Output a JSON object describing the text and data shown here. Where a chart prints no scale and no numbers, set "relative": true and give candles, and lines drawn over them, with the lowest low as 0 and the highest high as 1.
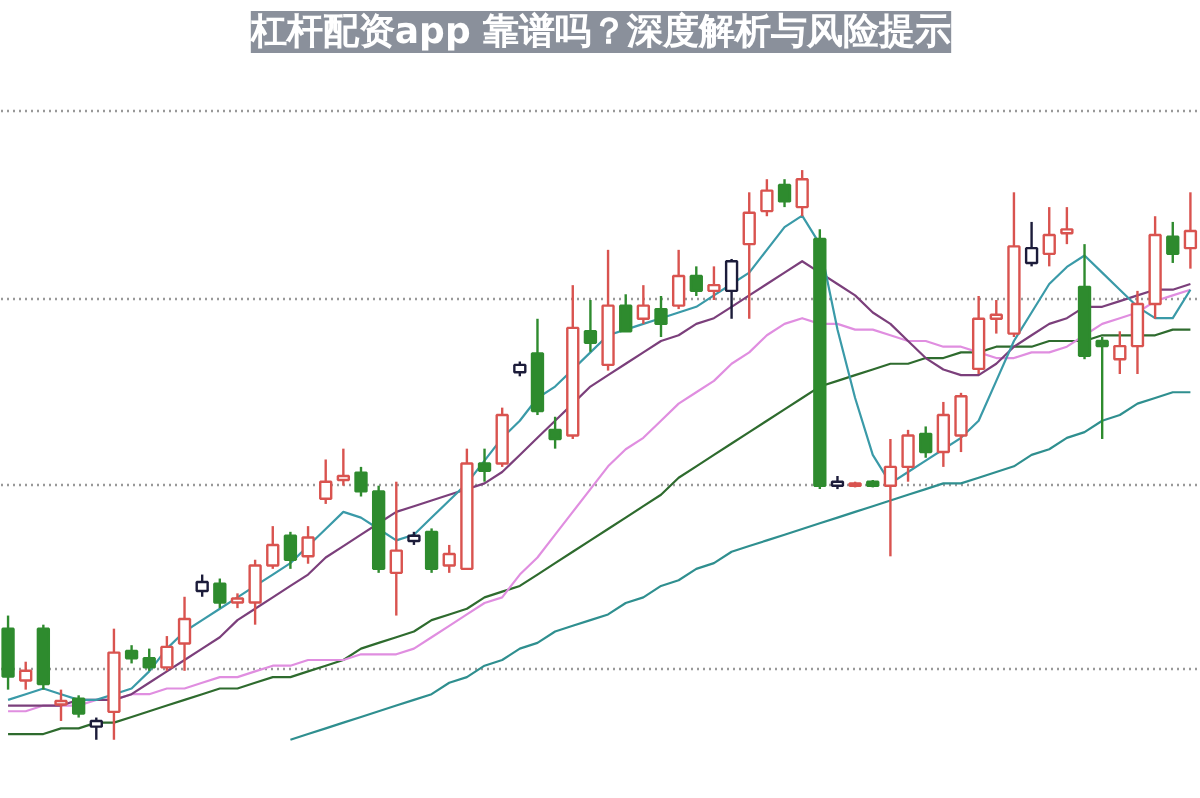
{
  "chart_data": {
    "type": "candlestick",
    "relative": true,
    "grid": true,
    "title": "杠杆配资app 靠谱吗？深度解析与风险提示",
    "categories": [
      null,
      null,
      null,
      null,
      null,
      null,
      null,
      null,
      null,
      null,
      null,
      null,
      null,
      null,
      null,
      null,
      null,
      null,
      null,
      null,
      null,
      null,
      null,
      null,
      null,
      null,
      null,
      null,
      null,
      null,
      null,
      null,
      null,
      null,
      null,
      null,
      null,
      null,
      null,
      null,
      null,
      null,
      null,
      null,
      null,
      null,
      null,
      null,
      null,
      null,
      null,
      null,
      null,
      null,
      null,
      null,
      null,
      null,
      null,
      null,
      null,
      null,
      null,
      null,
      null,
      null,
      null,
      null
    ],
    "ohlc": [
      [
        0.195,
        0.218,
        0.088,
        0.111
      ],
      [
        0.104,
        0.137,
        0.088,
        0.121
      ],
      [
        0.195,
        0.202,
        0.088,
        0.098
      ],
      [
        0.062,
        0.088,
        0.033,
        0.068
      ],
      [
        0.072,
        0.078,
        0.039,
        0.046
      ],
      [
        0.023,
        0.039,
        0.0,
        0.033
      ],
      [
        0.049,
        0.195,
        0.0,
        0.153
      ],
      [
        0.156,
        0.166,
        0.134,
        0.143
      ],
      [
        0.143,
        0.16,
        0.121,
        0.127
      ],
      [
        0.127,
        0.182,
        0.121,
        0.163
      ],
      [
        0.169,
        0.251,
        0.121,
        0.212
      ],
      [
        0.261,
        0.29,
        0.251,
        0.277
      ],
      [
        0.274,
        0.283,
        0.231,
        0.241
      ],
      [
        0.241,
        0.257,
        0.231,
        0.248
      ],
      [
        0.241,
        0.316,
        0.202,
        0.306
      ],
      [
        0.306,
        0.375,
        0.3,
        0.342
      ],
      [
        0.358,
        0.365,
        0.3,
        0.316
      ],
      [
        0.322,
        0.375,
        0.309,
        0.355
      ],
      [
        0.423,
        0.492,
        0.414,
        0.453
      ],
      [
        0.456,
        0.511,
        0.446,
        0.463
      ],
      [
        0.469,
        0.479,
        0.427,
        0.436
      ],
      [
        0.436,
        0.446,
        0.293,
        0.3
      ],
      [
        0.293,
        0.453,
        0.218,
        0.332
      ],
      [
        0.349,
        0.365,
        0.342,
        0.358
      ],
      [
        0.365,
        0.371,
        0.293,
        0.3
      ],
      [
        0.306,
        0.342,
        0.293,
        0.326
      ],
      [
        0.3,
        0.511,
        0.3,
        0.485
      ],
      [
        0.485,
        0.511,
        0.453,
        0.472
      ],
      [
        0.485,
        0.583,
        0.479,
        0.57
      ],
      [
        0.645,
        0.664,
        0.638,
        0.658
      ],
      [
        0.678,
        0.739,
        0.57,
        0.577
      ],
      [
        0.544,
        0.567,
        0.511,
        0.528
      ],
      [
        0.534,
        0.798,
        0.528,
        0.723
      ],
      [
        0.717,
        0.772,
        0.681,
        0.697
      ],
      [
        0.658,
        0.86,
        0.648,
        0.762
      ],
      [
        0.762,
        0.782,
        0.717,
        0.717
      ],
      [
        0.739,
        0.798,
        0.73,
        0.762
      ],
      [
        0.756,
        0.779,
        0.707,
        0.73
      ],
      [
        0.762,
        0.86,
        0.756,
        0.814
      ],
      [
        0.814,
        0.831,
        0.779,
        0.788
      ],
      [
        0.788,
        0.831,
        0.772,
        0.798
      ],
      [
        0.788,
        0.844,
        0.739,
        0.84
      ],
      [
        0.87,
        0.961,
        0.739,
        0.925
      ],
      [
        0.928,
        0.984,
        0.919,
        0.964
      ],
      [
        0.974,
        0.984,
        0.935,
        0.945
      ],
      [
        0.935,
        1.0,
        0.919,
        0.984
      ],
      [
        0.879,
        0.896,
        0.44,
        0.446
      ],
      [
        0.446,
        0.463,
        0.44,
        0.453
      ],
      [
        0.446,
        0.453,
        0.443,
        0.45
      ],
      [
        0.453,
        0.456,
        0.443,
        0.446
      ],
      [
        0.446,
        0.528,
        0.322,
        0.479
      ],
      [
        0.479,
        0.544,
        0.453,
        0.534
      ],
      [
        0.537,
        0.55,
        0.495,
        0.505
      ],
      [
        0.505,
        0.593,
        0.479,
        0.57
      ],
      [
        0.534,
        0.609,
        0.505,
        0.603
      ],
      [
        0.651,
        0.779,
        0.642,
        0.739
      ],
      [
        0.739,
        0.772,
        0.713,
        0.746
      ],
      [
        0.713,
        0.961,
        0.707,
        0.866
      ],
      [
        0.837,
        0.909,
        0.831,
        0.863
      ],
      [
        0.853,
        0.935,
        0.831,
        0.886
      ],
      [
        0.889,
        0.935,
        0.87,
        0.896
      ],
      [
        0.795,
        0.87,
        0.668,
        0.674
      ],
      [
        0.7,
        0.707,
        0.528,
        0.691
      ],
      [
        0.668,
        0.717,
        0.642,
        0.691
      ],
      [
        0.691,
        0.788,
        0.642,
        0.765
      ],
      [
        0.765,
        0.919,
        0.739,
        0.886
      ],
      [
        0.883,
        0.909,
        0.837,
        0.853
      ],
      [
        0.863,
        0.961,
        0.827,
        0.893
      ]
    ],
    "colors": [
      "#2e8b2e",
      "#d9534f",
      "#2e8b2e",
      "#d9534f",
      "#2e8b2e",
      "#1c1c3a",
      "#d9534f",
      "#2e8b2e",
      "#2e8b2e",
      "#d9534f",
      "#d9534f",
      "#1c1c3a",
      "#2e8b2e",
      "#d9534f",
      "#d9534f",
      "#d9534f",
      "#2e8b2e",
      "#d9534f",
      "#d9534f",
      "#d9534f",
      "#2e8b2e",
      "#2e8b2e",
      "#d9534f",
      "#1c1c3a",
      "#2e8b2e",
      "#d9534f",
      "#d9534f",
      "#2e8b2e",
      "#d9534f",
      "#1c1c3a",
      "#2e8b2e",
      "#2e8b2e",
      "#d9534f",
      "#2e8b2e",
      "#d9534f",
      "#2e8b2e",
      "#d9534f",
      "#2e8b2e",
      "#d9534f",
      "#2e8b2e",
      "#d9534f",
      "#1c1c3a",
      "#d9534f",
      "#d9534f",
      "#2e8b2e",
      "#d9534f",
      "#2e8b2e",
      "#1c1c3a",
      "#d9534f",
      "#2e8b2e",
      "#d9534f",
      "#d9534f",
      "#2e8b2e",
      "#d9534f",
      "#d9534f",
      "#d9534f",
      "#d9534f",
      "#d9534f",
      "#1c1c3a",
      "#d9534f",
      "#d9534f",
      "#2e8b2e",
      "#2e8b2e",
      "#d9534f",
      "#d9534f",
      "#d9534f",
      "#2e8b2e",
      "#d9534f"
    ],
    "series": [
      {
        "type": "line",
        "color": "#2f8f8f",
        "values": [
          null,
          null,
          null,
          null,
          null,
          null,
          null,
          null,
          null,
          null,
          null,
          null,
          null,
          null,
          null,
          null,
          0.0,
          0.01,
          0.02,
          0.03,
          0.04,
          0.05,
          0.06,
          0.07,
          0.08,
          0.1,
          0.11,
          0.13,
          0.14,
          0.16,
          0.17,
          0.19,
          0.2,
          0.21,
          0.22,
          0.24,
          0.25,
          0.27,
          0.28,
          0.3,
          0.31,
          0.33,
          0.34,
          0.35,
          0.36,
          0.37,
          0.38,
          0.39,
          0.4,
          0.41,
          0.42,
          0.43,
          0.44,
          0.45,
          0.45,
          0.46,
          0.47,
          0.48,
          0.5,
          0.51,
          0.53,
          0.54,
          0.56,
          0.57,
          0.59,
          0.6,
          0.61,
          0.61
        ]
      },
      {
        "type": "line",
        "color": "#2e6b2e",
        "values": [
          0.01,
          0.01,
          0.01,
          0.02,
          0.02,
          0.03,
          0.03,
          0.04,
          0.05,
          0.06,
          0.07,
          0.08,
          0.09,
          0.09,
          0.1,
          0.11,
          0.11,
          0.12,
          0.13,
          0.14,
          0.16,
          0.17,
          0.18,
          0.19,
          0.21,
          0.22,
          0.23,
          0.25,
          0.26,
          0.27,
          0.29,
          0.31,
          0.33,
          0.35,
          0.37,
          0.39,
          0.41,
          0.43,
          0.46,
          0.48,
          0.5,
          0.52,
          0.54,
          0.56,
          0.58,
          0.6,
          0.62,
          0.63,
          0.64,
          0.65,
          0.66,
          0.66,
          0.67,
          0.67,
          0.68,
          0.68,
          0.69,
          0.69,
          0.69,
          0.7,
          0.7,
          0.7,
          0.71,
          0.71,
          0.71,
          0.71,
          0.72,
          0.72
        ]
      },
      {
        "type": "line",
        "color": "#e08ee0",
        "values": [
          0.05,
          0.05,
          0.06,
          0.06,
          0.06,
          0.07,
          0.07,
          0.08,
          0.08,
          0.09,
          0.09,
          0.1,
          0.11,
          0.11,
          0.12,
          0.13,
          0.13,
          0.14,
          0.14,
          0.14,
          0.15,
          0.15,
          0.15,
          0.16,
          0.18,
          0.2,
          0.22,
          0.24,
          0.25,
          0.29,
          0.32,
          0.36,
          0.4,
          0.44,
          0.48,
          0.51,
          0.53,
          0.56,
          0.59,
          0.61,
          0.63,
          0.66,
          0.68,
          0.71,
          0.73,
          0.74,
          0.73,
          0.73,
          0.72,
          0.72,
          0.71,
          0.7,
          0.7,
          0.69,
          0.69,
          0.68,
          0.67,
          0.67,
          0.68,
          0.68,
          0.69,
          0.71,
          0.73,
          0.74,
          0.75,
          0.77,
          0.78,
          0.79
        ]
      },
      {
        "type": "line",
        "color": "#7b3f7b",
        "values": [
          0.06,
          0.06,
          0.06,
          0.06,
          0.07,
          0.07,
          0.07,
          0.08,
          0.1,
          0.12,
          0.14,
          0.16,
          0.18,
          0.21,
          0.23,
          0.25,
          0.27,
          0.29,
          0.32,
          0.34,
          0.36,
          0.38,
          0.4,
          0.41,
          0.42,
          0.43,
          0.44,
          0.45,
          0.47,
          0.5,
          0.53,
          0.56,
          0.59,
          0.62,
          0.64,
          0.66,
          0.68,
          0.7,
          0.71,
          0.73,
          0.74,
          0.76,
          0.78,
          0.8,
          0.82,
          0.84,
          0.82,
          0.8,
          0.78,
          0.75,
          0.73,
          0.7,
          0.67,
          0.65,
          0.64,
          0.64,
          0.66,
          0.69,
          0.71,
          0.73,
          0.74,
          0.76,
          0.76,
          0.77,
          0.78,
          0.79,
          0.79,
          0.8
        ]
      },
      {
        "type": "line",
        "color": "#3a9aa8",
        "values": [
          0.07,
          0.08,
          0.09,
          0.08,
          0.07,
          0.07,
          0.08,
          0.09,
          0.12,
          0.16,
          0.19,
          0.21,
          0.23,
          0.25,
          0.27,
          0.29,
          0.31,
          0.34,
          0.37,
          0.4,
          0.39,
          0.37,
          0.35,
          0.36,
          0.39,
          0.42,
          0.45,
          0.49,
          0.53,
          0.56,
          0.6,
          0.62,
          0.65,
          0.68,
          0.71,
          0.72,
          0.73,
          0.74,
          0.75,
          0.76,
          0.78,
          0.8,
          0.82,
          0.86,
          0.9,
          0.92,
          0.87,
          0.72,
          0.6,
          0.5,
          0.45,
          0.47,
          0.49,
          0.51,
          0.53,
          0.56,
          0.63,
          0.7,
          0.75,
          0.8,
          0.83,
          0.85,
          0.82,
          0.79,
          0.76,
          0.74,
          0.74,
          0.79
        ]
      }
    ]
  }
}
